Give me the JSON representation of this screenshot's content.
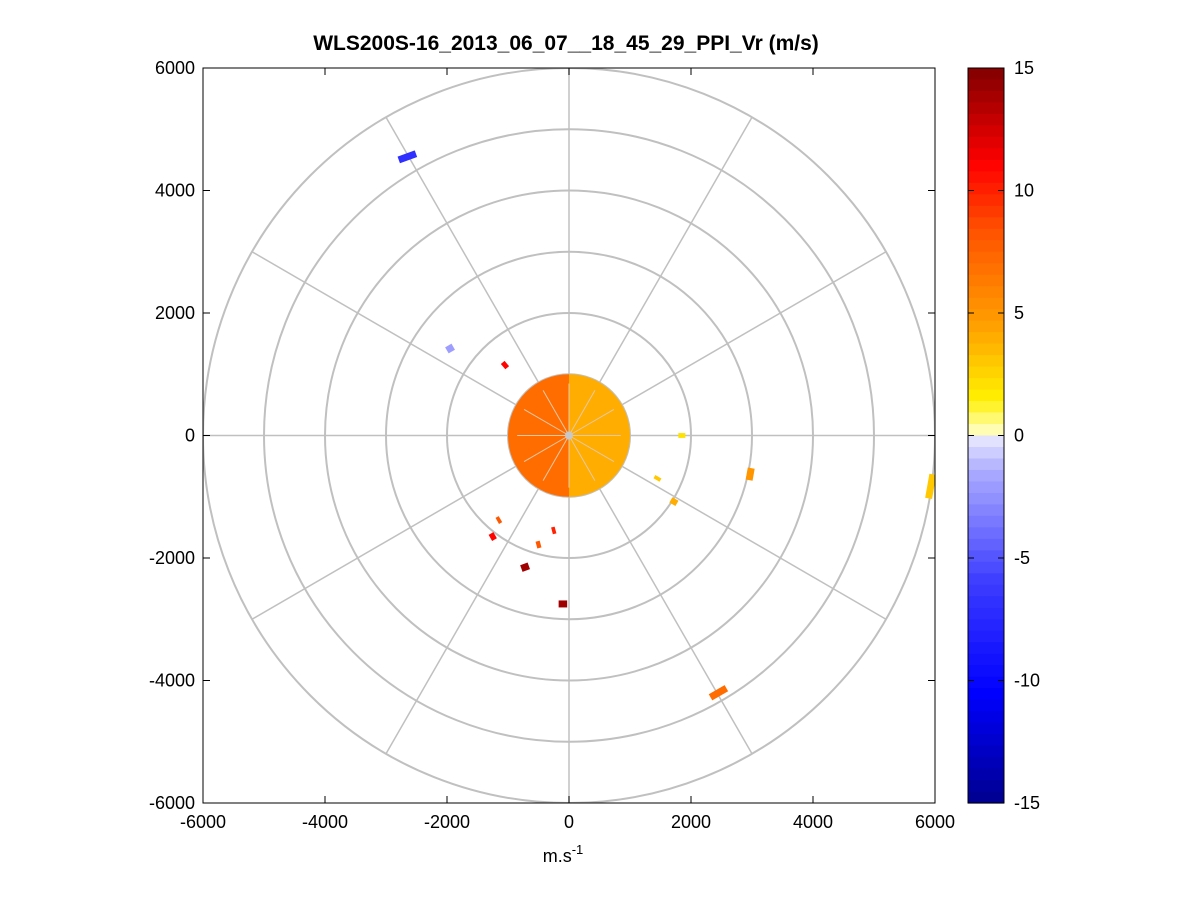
{
  "chart_data": {
    "type": "polar-ppi",
    "title": "WLS200S-16_2013_06_07__18_45_29_PPI_Vr (m/s)",
    "xlabel_base": "m.s",
    "xlabel_sup": "-1",
    "ylabel": "",
    "xlim": [
      -6000,
      6000
    ],
    "ylim": [
      -6000,
      6000
    ],
    "xticks": [
      -6000,
      -4000,
      -2000,
      0,
      2000,
      4000,
      6000
    ],
    "yticks": [
      6000,
      4000,
      2000,
      0,
      -2000,
      -4000,
      -6000
    ],
    "xtick_labels": [
      "-6000",
      "-4000",
      "-2000",
      "0",
      "2000",
      "4000",
      "6000"
    ],
    "ytick_labels": [
      "6000",
      "4000",
      "2000",
      "0",
      "-2000",
      "-4000",
      "-6000"
    ],
    "range_rings": [
      1000,
      2000,
      3000,
      4000,
      5000,
      6000
    ],
    "spoke_angles_deg": [
      0,
      30,
      60,
      90,
      120,
      150,
      180,
      210,
      240,
      270,
      300,
      330
    ],
    "colorbar": {
      "min": -15,
      "max": 15,
      "ticks": [
        15,
        10,
        5,
        0,
        -5,
        -10,
        -15
      ],
      "tick_labels": [
        "15",
        "10",
        "5",
        "0",
        "-5",
        "-10",
        "-15"
      ]
    },
    "core_echo": {
      "radius_m": 1000,
      "west_half_vr": 7,
      "east_half_vr": 4
    },
    "echoes": [
      {
        "x": -2650,
        "y": 4550,
        "angle_deg": 20,
        "length_m": 300,
        "vr": -7
      },
      {
        "x": -1950,
        "y": 1420,
        "angle_deg": 30,
        "length_m": 120,
        "vr": -2
      },
      {
        "x": -1050,
        "y": 1150,
        "angle_deg": 40,
        "length_m": 80,
        "vr": 11
      },
      {
        "x": -720,
        "y": -2150,
        "angle_deg": 20,
        "length_m": 130,
        "vr": 14
      },
      {
        "x": -100,
        "y": -2750,
        "angle_deg": 0,
        "length_m": 140,
        "vr": 14
      },
      {
        "x": -1250,
        "y": -1650,
        "angle_deg": 30,
        "length_m": 90,
        "vr": 11
      },
      {
        "x": 2450,
        "y": -4200,
        "angle_deg": 30,
        "length_m": 300,
        "vr": 7
      },
      {
        "x": 2970,
        "y": -630,
        "angle_deg": 80,
        "length_m": 200,
        "vr": 5
      },
      {
        "x": 5930,
        "y": -830,
        "angle_deg": 80,
        "length_m": 400,
        "vr": 3
      },
      {
        "x": 1720,
        "y": -1080,
        "angle_deg": 60,
        "length_m": 100,
        "vr": 4
      },
      {
        "x": 1450,
        "y": -700,
        "angle_deg": 60,
        "length_m": 60,
        "vr": 3
      },
      {
        "x": 1850,
        "y": 0,
        "angle_deg": 90,
        "length_m": 80,
        "vr": 2
      },
      {
        "x": -500,
        "y": -1780,
        "angle_deg": 15,
        "length_m": 70,
        "vr": 8
      },
      {
        "x": -250,
        "y": -1550,
        "angle_deg": 15,
        "length_m": 60,
        "vr": 10
      },
      {
        "x": -1150,
        "y": -1380,
        "angle_deg": 30,
        "length_m": 60,
        "vr": 8
      }
    ]
  }
}
